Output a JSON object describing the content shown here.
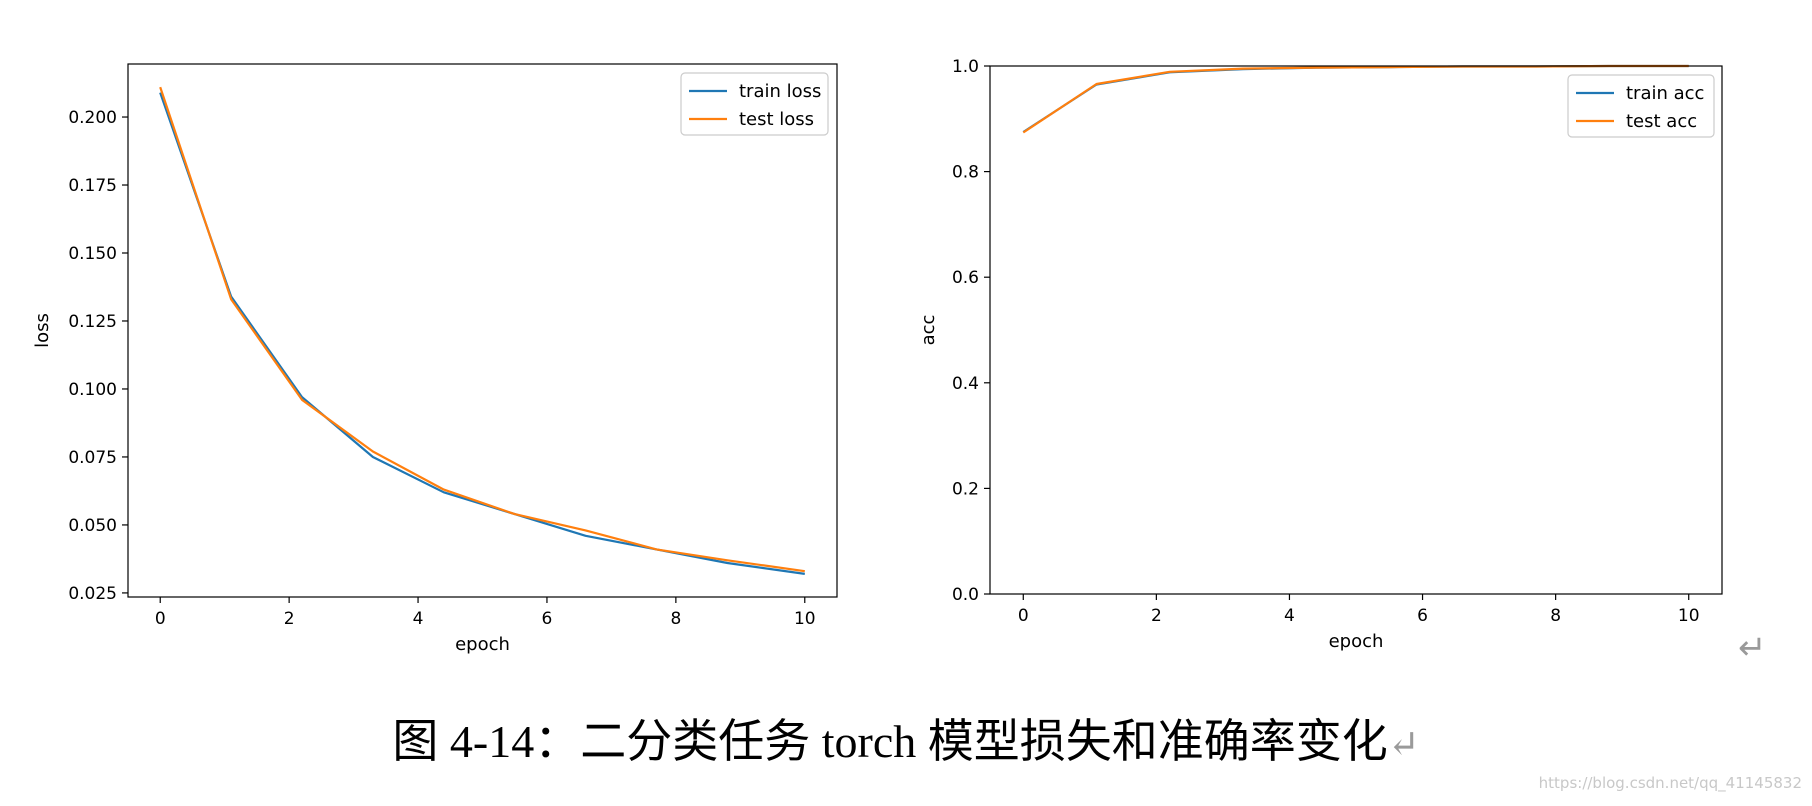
{
  "chart_data": [
    {
      "type": "line",
      "xlabel": "epoch",
      "ylabel": "loss",
      "xlim": [
        -0.5,
        10.5
      ],
      "ylim": [
        0.0235,
        0.2195
      ],
      "xticks": [
        0,
        2,
        4,
        6,
        8,
        10
      ],
      "yticks": [
        0.025,
        0.05,
        0.075,
        0.1,
        0.125,
        0.15,
        0.175,
        0.2
      ],
      "ytick_labels": [
        "0.025",
        "0.050",
        "0.075",
        "0.100",
        "0.125",
        "0.150",
        "0.175",
        "0.200"
      ],
      "xtick_labels": [
        "0",
        "2",
        "4",
        "6",
        "8",
        "10"
      ],
      "legend_position": "upper-right",
      "x": [
        0,
        1.1,
        2.2,
        3.3,
        4.4,
        5.5,
        6.6,
        7.7,
        8.8,
        10
      ],
      "series": [
        {
          "name": "train loss",
          "color": "#1f77b4",
          "values": [
            0.209,
            0.134,
            0.097,
            0.075,
            0.062,
            0.054,
            0.046,
            0.041,
            0.036,
            0.032
          ]
        },
        {
          "name": "test loss",
          "color": "#ff7f0e",
          "values": [
            0.211,
            0.133,
            0.096,
            0.077,
            0.063,
            0.054,
            0.048,
            0.041,
            0.037,
            0.033
          ]
        }
      ]
    },
    {
      "type": "line",
      "xlabel": "epoch",
      "ylabel": "acc",
      "xlim": [
        -0.5,
        10.5
      ],
      "ylim": [
        0.0,
        1.0
      ],
      "xticks": [
        0,
        2,
        4,
        6,
        8,
        10
      ],
      "yticks": [
        0.0,
        0.2,
        0.4,
        0.6,
        0.8,
        1.0
      ],
      "ytick_labels": [
        "0.0",
        "0.2",
        "0.4",
        "0.6",
        "0.8",
        "1.0"
      ],
      "xtick_labels": [
        "0",
        "2",
        "4",
        "6",
        "8",
        "10"
      ],
      "legend_position": "upper-right",
      "x": [
        0,
        1.1,
        2.2,
        3.3,
        4.4,
        5.5,
        6.6,
        7.7,
        8.8,
        10
      ],
      "series": [
        {
          "name": "train acc",
          "color": "#1f77b4",
          "values": [
            0.875,
            0.965,
            0.988,
            0.994,
            0.997,
            0.998,
            0.999,
            0.999,
            1.0,
            1.0
          ]
        },
        {
          "name": "test acc",
          "color": "#ff7f0e",
          "values": [
            0.874,
            0.966,
            0.989,
            0.995,
            0.997,
            0.998,
            0.999,
            0.999,
            1.0,
            1.0
          ]
        }
      ]
    }
  ],
  "caption": {
    "text": "图 4-14：二分类任务 torch 模型损失和准确率变化",
    "return_mark": "↵"
  },
  "paragraph_mark": "↵",
  "watermark": "https://blog.csdn.net/qq_41145832"
}
